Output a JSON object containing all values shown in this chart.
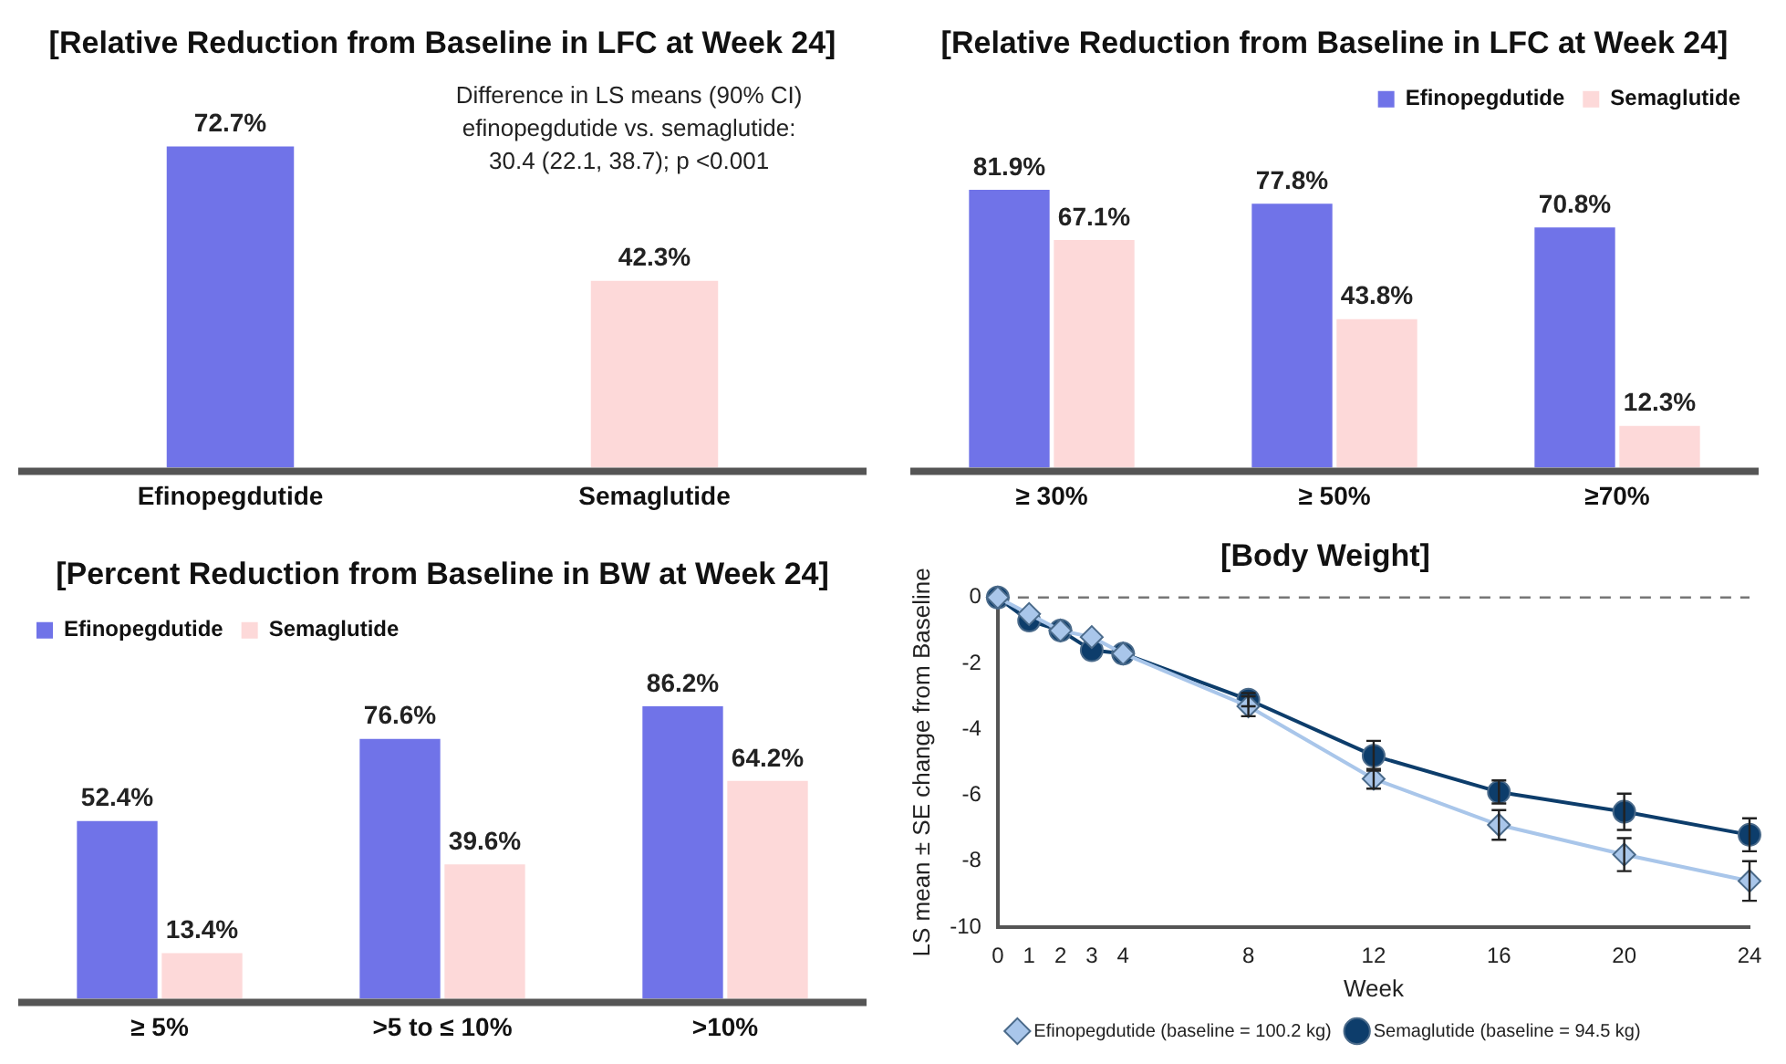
{
  "chart_data": [
    {
      "type": "bar",
      "title": "[Relative Reduction from Baseline in LFC at Week 24]",
      "categories": [
        "Efinopegdutide",
        "Semaglutide"
      ],
      "values": [
        72.7,
        42.3
      ],
      "value_labels": [
        "72.7%",
        "42.3%"
      ],
      "colors": [
        "#7073e8",
        "#fdd9d9"
      ],
      "tick_labels": "x",
      "grid": false,
      "legend": false,
      "annotations": [
        "Difference in LS means (90% CI)\nefinopegdutide vs. semaglutide:\n30.4 (22.1, 38.7); p <0.001"
      ]
    },
    {
      "type": "bar",
      "title": "[Relative Reduction from Baseline in LFC at Week 24]",
      "categories": [
        "≥ 30%",
        "≥ 50%",
        "≥70%"
      ],
      "series": [
        {
          "name": "Efinopegdutide",
          "color": "#7073e8",
          "values": [
            81.9,
            77.8,
            70.8
          ],
          "value_labels": [
            "81.9%",
            "77.8%",
            "70.8%"
          ]
        },
        {
          "name": "Semaglutide",
          "color": "#fdd9d9",
          "values": [
            67.1,
            43.8,
            12.3
          ],
          "value_labels": [
            "67.1%",
            "43.8%",
            "12.3%"
          ]
        }
      ],
      "tick_labels": "x",
      "grid": false,
      "legend": "top right"
    },
    {
      "type": "bar",
      "title": "[Percent Reduction from Baseline in BW at Week 24]",
      "categories": [
        "≥ 5%",
        ">5 to ≤ 10%",
        ">10%"
      ],
      "series": [
        {
          "name": "Efinopegdutide",
          "color": "#7073e8",
          "values": [
            52.4,
            76.6,
            86.2
          ],
          "value_labels": [
            "52.4%",
            "76.6%",
            "86.2%"
          ]
        },
        {
          "name": "Semaglutide",
          "color": "#fdd9d9",
          "values": [
            13.4,
            39.6,
            64.2
          ],
          "value_labels": [
            "13.4%",
            "39.6%",
            "64.2%"
          ]
        }
      ],
      "tick_labels": "x",
      "grid": false,
      "legend": "top left"
    },
    {
      "type": "line",
      "title": "[Body Weight]",
      "xlabel": "Week",
      "ylabel": "LS mean ± SE change from Baseline",
      "x": [
        0,
        1,
        2,
        3,
        4,
        8,
        12,
        16,
        20,
        24
      ],
      "series": [
        {
          "name": "Efinopegdutide (baseline = 100.2 kg)",
          "color": "#a9c6ea",
          "marker": "diamond",
          "values": [
            0,
            -0.5,
            -1.0,
            -1.2,
            -1.7,
            -3.3,
            -5.5,
            -6.9,
            -7.8,
            -8.6
          ],
          "errors": [
            null,
            null,
            null,
            null,
            null,
            0.3,
            0.3,
            0.45,
            0.5,
            0.6
          ]
        },
        {
          "name": "Semaglutide (baseline = 94.5 kg)",
          "color": "#0d3d6b",
          "marker": "circle",
          "values": [
            0,
            -0.7,
            -1.0,
            -1.6,
            -1.7,
            -3.1,
            -4.8,
            -5.9,
            -6.5,
            -7.2
          ],
          "errors": [
            null,
            null,
            null,
            null,
            null,
            0.2,
            0.45,
            0.35,
            0.55,
            0.5
          ]
        }
      ],
      "xlim": [
        0,
        24
      ],
      "xticks": [
        0,
        1,
        2,
        3,
        4,
        8,
        12,
        16,
        20,
        24
      ],
      "ylim": [
        -10,
        0
      ],
      "yticks": [
        -10,
        -8,
        -6,
        -4,
        -2,
        0
      ],
      "grid": false,
      "legend": "bottom",
      "line_style": "solid",
      "ref_lines": [
        {
          "axis": "y",
          "value": 0,
          "line_style": "dashed",
          "color": "#777777"
        }
      ]
    }
  ]
}
